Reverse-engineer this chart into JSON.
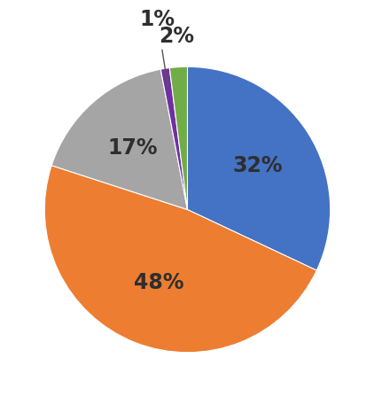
{
  "slices": [
    32,
    48,
    17,
    1,
    2
  ],
  "colors": [
    "#4472C4",
    "#ED7D31",
    "#A5A5A5",
    "#7030A0",
    "#70AD47"
  ],
  "labels": [
    "32%",
    "48%",
    "17%",
    "1%",
    "2%"
  ],
  "background_color": "#FFFFFF",
  "label_fontsize": 17,
  "label_color": "#2E2E2E",
  "startangle": 90,
  "label_radii": [
    0.58,
    0.55,
    0.58,
    1.35,
    1.22
  ]
}
